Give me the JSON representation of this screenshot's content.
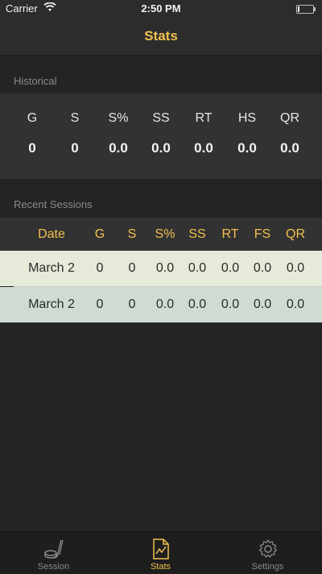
{
  "status_bar": {
    "carrier": "Carrier",
    "time": "2:50 PM"
  },
  "nav": {
    "title": "Stats"
  },
  "historical": {
    "header": "Historical",
    "stats": [
      {
        "label": "G",
        "value": "0"
      },
      {
        "label": "S",
        "value": "0"
      },
      {
        "label": "S%",
        "value": "0.0"
      },
      {
        "label": "SS",
        "value": "0.0"
      },
      {
        "label": "RT",
        "value": "0.0"
      },
      {
        "label": "HS",
        "value": "0.0"
      },
      {
        "label": "QR",
        "value": "0.0"
      }
    ]
  },
  "recent": {
    "header": "Recent Sessions",
    "columns": [
      "Date",
      "G",
      "S",
      "S%",
      "SS",
      "RT",
      "FS",
      "QR"
    ],
    "rows": [
      [
        "March 2",
        "0",
        "0",
        "0.0",
        "0.0",
        "0.0",
        "0.0",
        "0.0"
      ],
      [
        "March 2",
        "0",
        "0",
        "0.0",
        "0.0",
        "0.0",
        "0.0",
        "0.0"
      ]
    ]
  },
  "tabs": [
    {
      "label": "Session",
      "icon": "hockey-stick-icon",
      "active": false
    },
    {
      "label": "Stats",
      "icon": "chart-document-icon",
      "active": true
    },
    {
      "label": "Settings",
      "icon": "gear-icon",
      "active": false
    }
  ],
  "colors": {
    "accent": "#f2c14e",
    "background": "#242424",
    "row_light": "#e6ead8",
    "row_alt": "#d0dcd3"
  }
}
